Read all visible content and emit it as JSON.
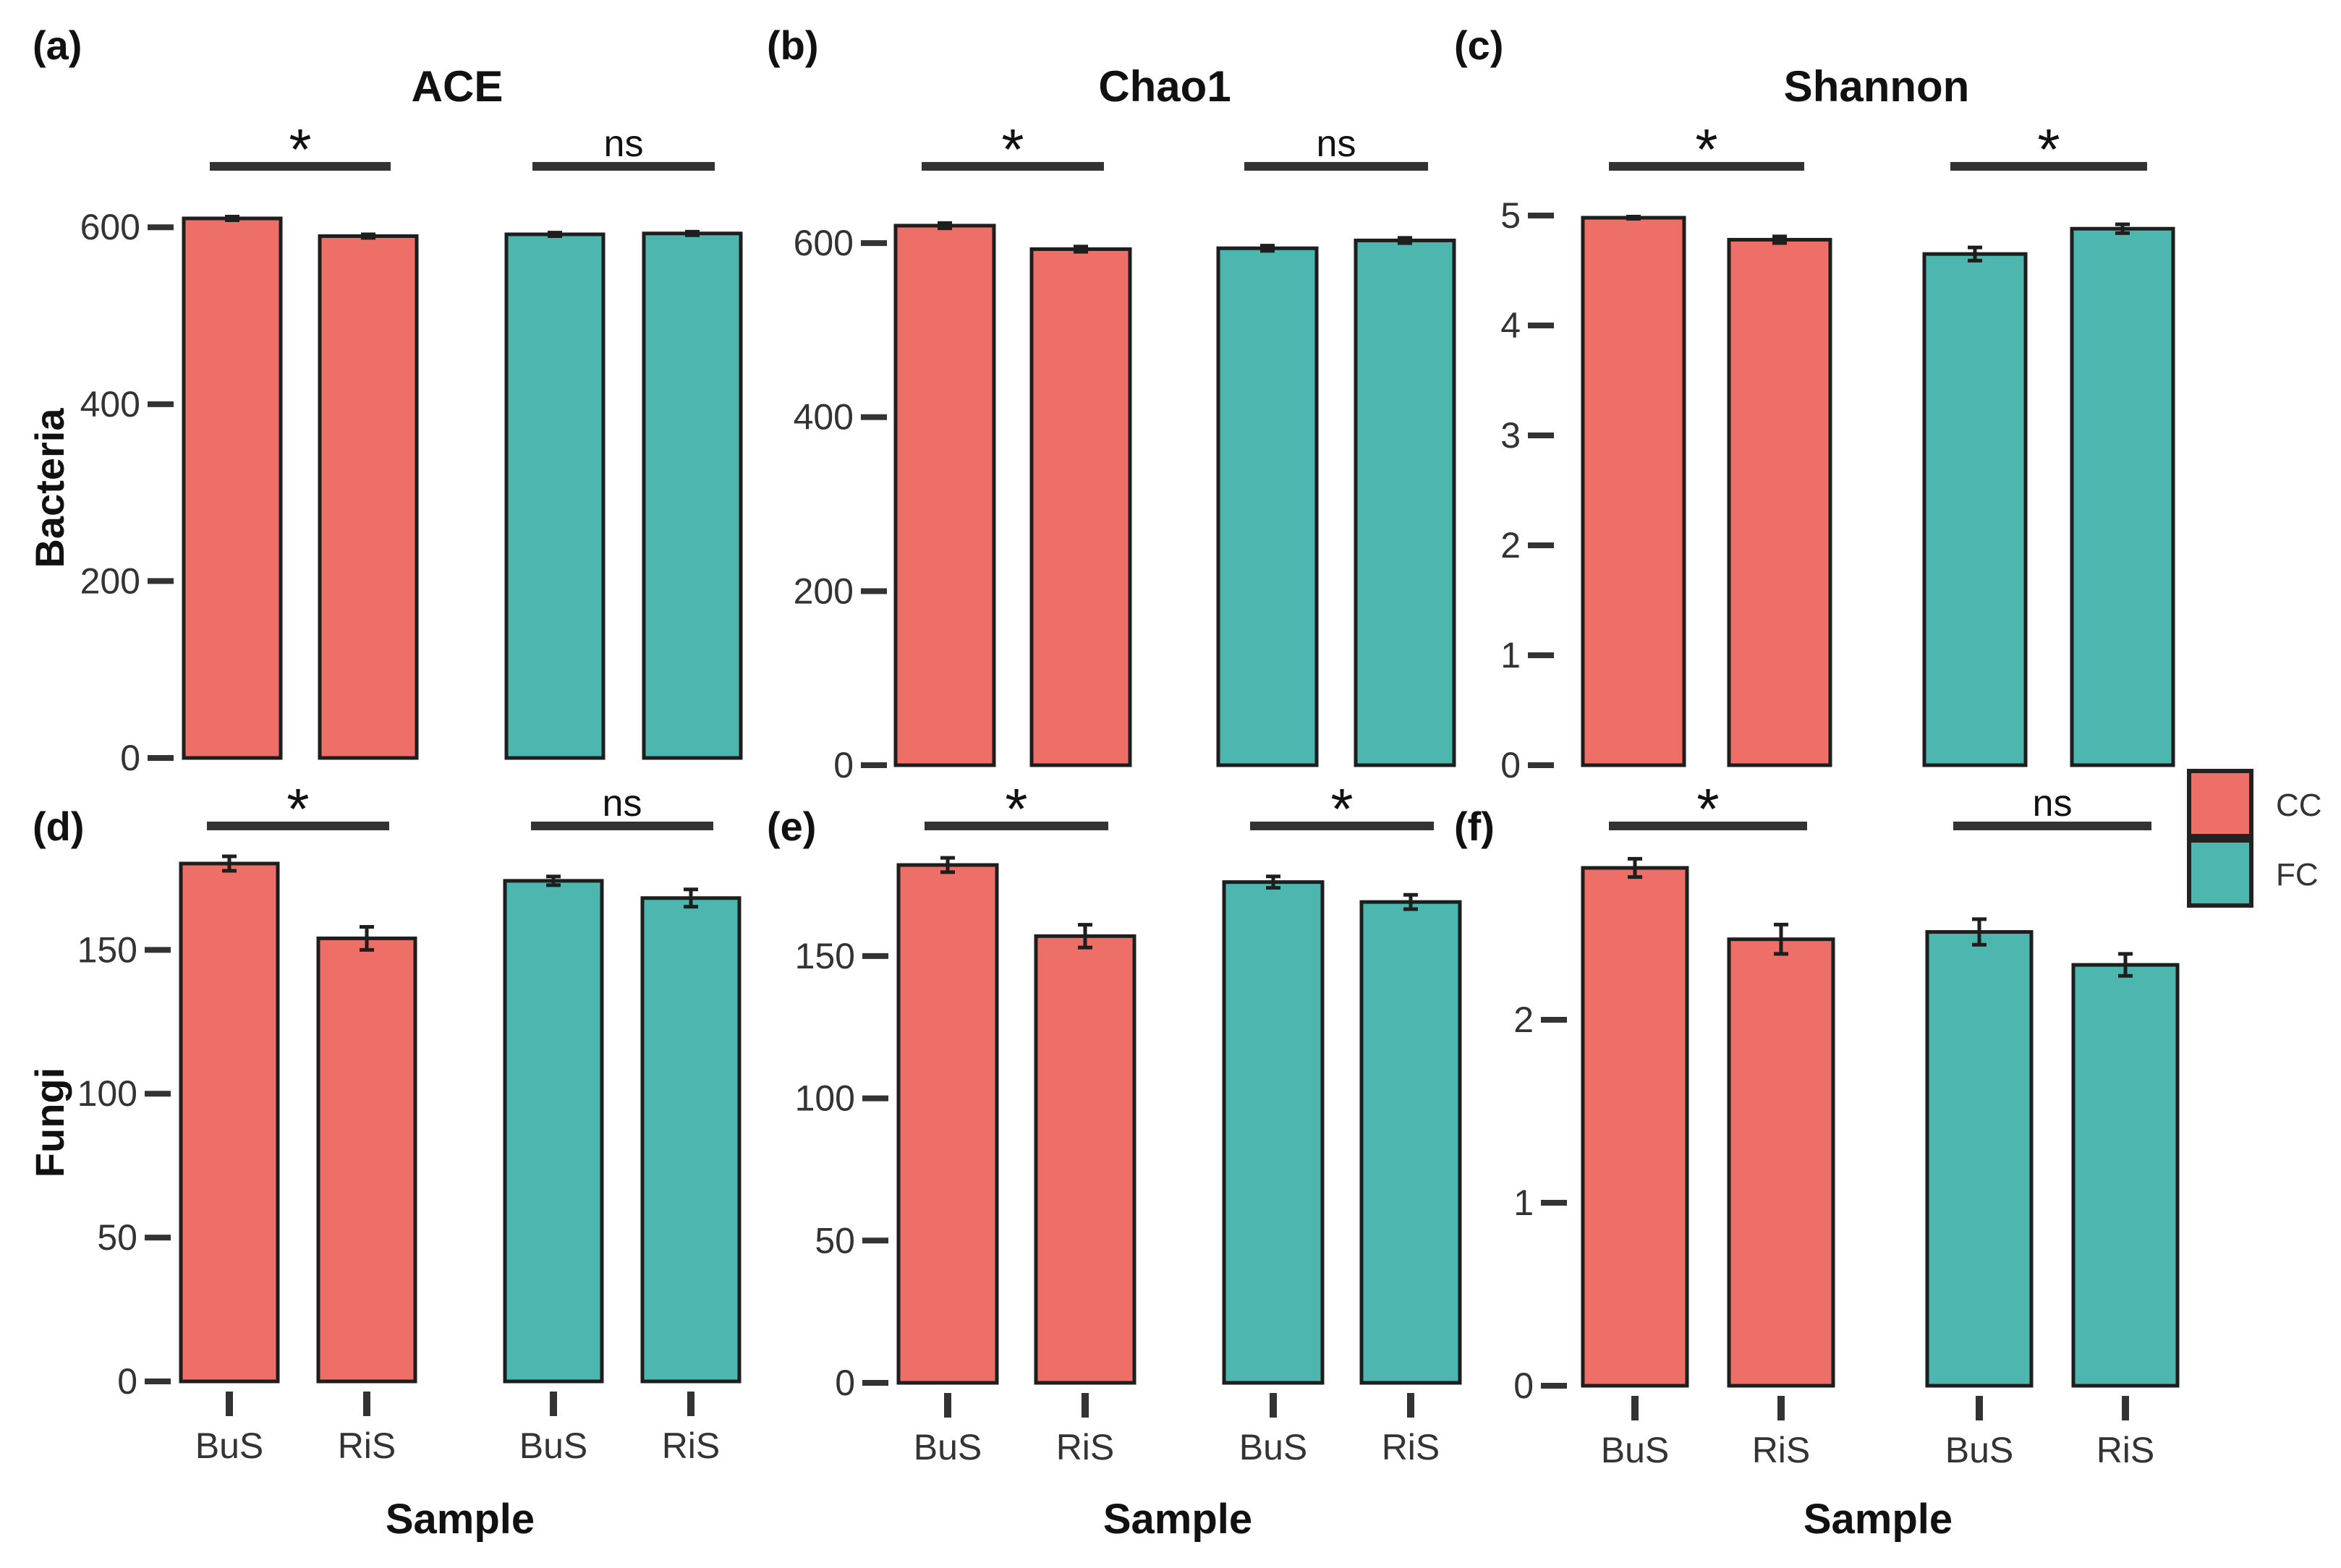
{
  "legend": {
    "items": [
      {
        "label": "CC",
        "color": "#ED6F67"
      },
      {
        "label": "FC",
        "color": "#4DB6AF"
      }
    ]
  },
  "colors": {
    "CC": "#ED6F67",
    "FC": "#4DB6AF"
  },
  "chart_data": [
    {
      "type": "bar",
      "panel": "(a)",
      "title": "ACE",
      "ylabel": "Bacteria",
      "xlabel": "",
      "ylim": [
        0,
        610
      ],
      "yticks": [
        0,
        200,
        400,
        600
      ],
      "bars": [
        {
          "group": "CC",
          "sample": "BuS",
          "value": 610,
          "err": 2
        },
        {
          "group": "CC",
          "sample": "RiS",
          "value": 590,
          "err": 2
        },
        {
          "group": "FC",
          "sample": "BuS",
          "value": 592,
          "err": 2
        },
        {
          "group": "FC",
          "sample": "RiS",
          "value": 593,
          "err": 2
        }
      ],
      "significance": [
        "*",
        "ns"
      ]
    },
    {
      "type": "bar",
      "panel": "(b)",
      "title": "Chao1",
      "ylabel": "",
      "xlabel": "",
      "ylim": [
        0,
        620
      ],
      "yticks": [
        0,
        200,
        400,
        600
      ],
      "bars": [
        {
          "group": "CC",
          "sample": "BuS",
          "value": 620,
          "err": 3
        },
        {
          "group": "CC",
          "sample": "RiS",
          "value": 593,
          "err": 3
        },
        {
          "group": "FC",
          "sample": "BuS",
          "value": 594,
          "err": 3
        },
        {
          "group": "FC",
          "sample": "RiS",
          "value": 603,
          "err": 3
        }
      ],
      "significance": [
        "*",
        "ns"
      ]
    },
    {
      "type": "bar",
      "panel": "(c)",
      "title": "Shannon",
      "ylabel": "",
      "xlabel": "",
      "ylim": [
        0,
        5
      ],
      "yticks": [
        0,
        1,
        2,
        3,
        4,
        5
      ],
      "bars": [
        {
          "group": "CC",
          "sample": "BuS",
          "value": 4.98,
          "err": 0.01
        },
        {
          "group": "CC",
          "sample": "RiS",
          "value": 4.78,
          "err": 0.03
        },
        {
          "group": "FC",
          "sample": "BuS",
          "value": 4.65,
          "err": 0.06
        },
        {
          "group": "FC",
          "sample": "RiS",
          "value": 4.88,
          "err": 0.04
        }
      ],
      "significance": [
        "*",
        "*"
      ]
    },
    {
      "type": "bar",
      "panel": "(d)",
      "title": "",
      "ylabel": "Fungi",
      "xlabel": "Sample",
      "ylim": [
        0,
        180
      ],
      "yticks": [
        0,
        50,
        100,
        150
      ],
      "bars": [
        {
          "group": "CC",
          "sample": "BuS",
          "value": 180,
          "err": 2.5
        },
        {
          "group": "CC",
          "sample": "RiS",
          "value": 154,
          "err": 4
        },
        {
          "group": "FC",
          "sample": "BuS",
          "value": 174,
          "err": 1.5
        },
        {
          "group": "FC",
          "sample": "RiS",
          "value": 168,
          "err": 3
        }
      ],
      "significance": [
        "*",
        "ns"
      ]
    },
    {
      "type": "bar",
      "panel": "(e)",
      "title": "",
      "ylabel": "",
      "xlabel": "Sample",
      "ylim": [
        0,
        182
      ],
      "yticks": [
        0,
        50,
        100,
        150
      ],
      "bars": [
        {
          "group": "CC",
          "sample": "BuS",
          "value": 182,
          "err": 2.5
        },
        {
          "group": "CC",
          "sample": "RiS",
          "value": 157,
          "err": 4
        },
        {
          "group": "FC",
          "sample": "BuS",
          "value": 176,
          "err": 2
        },
        {
          "group": "FC",
          "sample": "RiS",
          "value": 169,
          "err": 2.5
        }
      ],
      "significance": [
        "*",
        "*"
      ]
    },
    {
      "type": "bar",
      "panel": "(f)",
      "title": "",
      "ylabel": "",
      "xlabel": "Sample",
      "ylim": [
        0,
        2.83
      ],
      "yticks": [
        0,
        1,
        2
      ],
      "bars": [
        {
          "group": "CC",
          "sample": "BuS",
          "value": 2.83,
          "err": 0.05
        },
        {
          "group": "CC",
          "sample": "RiS",
          "value": 2.44,
          "err": 0.08
        },
        {
          "group": "FC",
          "sample": "BuS",
          "value": 2.48,
          "err": 0.07
        },
        {
          "group": "FC",
          "sample": "RiS",
          "value": 2.3,
          "err": 0.06
        }
      ],
      "significance": [
        "*",
        "ns"
      ]
    }
  ]
}
